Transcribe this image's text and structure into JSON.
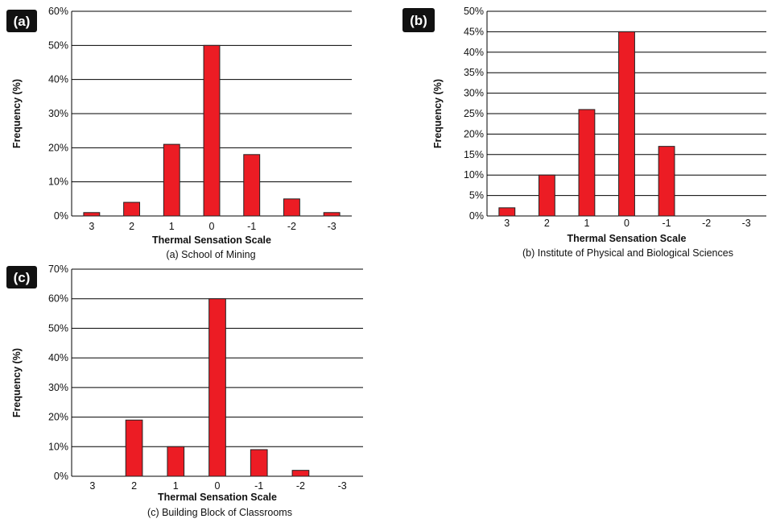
{
  "colors": {
    "bar": "#ec1c24",
    "bar_stroke": "#222222",
    "grid": "#000000",
    "tag_bg": "#111111"
  },
  "chart_data": [
    {
      "type": "bar",
      "panel_label": "(a)",
      "caption": "(a) School of Mining",
      "xlabel": "Thermal Sensation Scale",
      "ylabel": "Frequency (%)",
      "categories": [
        "3",
        "2",
        "1",
        "0",
        "-1",
        "-2",
        "-3"
      ],
      "values": [
        1,
        4,
        21,
        50,
        18,
        5,
        1
      ],
      "ylim": [
        0,
        60
      ],
      "yticks": [
        "0%",
        "10%",
        "20%",
        "30%",
        "40%",
        "50%",
        "60%"
      ],
      "grid": true
    },
    {
      "type": "bar",
      "panel_label": "(b)",
      "caption": "(b) Institute of Physical and Biological Sciences",
      "xlabel": "Thermal Sensation Scale",
      "ylabel": "Frequency (%)",
      "categories": [
        "3",
        "2",
        "1",
        "0",
        "-1",
        "-2",
        "-3"
      ],
      "values": [
        2,
        10,
        26,
        45,
        17,
        0,
        0
      ],
      "ylim": [
        0,
        50
      ],
      "yticks": [
        "0%",
        "5%",
        "10%",
        "15%",
        "20%",
        "25%",
        "30%",
        "35%",
        "40%",
        "45%",
        "50%"
      ],
      "grid": true
    },
    {
      "type": "bar",
      "panel_label": "(c)",
      "caption": "(c) Building Block of Classrooms",
      "xlabel": "Thermal Sensation Scale",
      "ylabel": "Frequency (%)",
      "categories": [
        "3",
        "2",
        "1",
        "0",
        "-1",
        "-2",
        "-3"
      ],
      "values": [
        0,
        19,
        10,
        60,
        9,
        2,
        0
      ],
      "ylim": [
        0,
        70
      ],
      "yticks": [
        "0%",
        "10%",
        "20%",
        "30%",
        "40%",
        "50%",
        "60%",
        "70%"
      ],
      "grid": true
    }
  ]
}
